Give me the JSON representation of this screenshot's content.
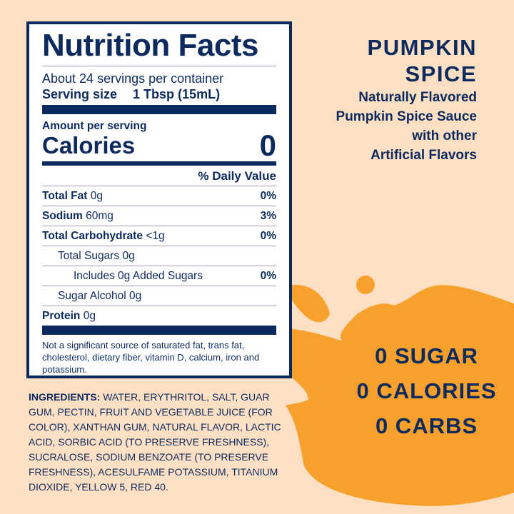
{
  "colors": {
    "background": "#fde0c3",
    "splash": "#f7a02c",
    "navy": "#0d2a5e"
  },
  "nutrition": {
    "title": "Nutrition Facts",
    "servings": "About 24 servings per container",
    "serving_size_label": "Serving size",
    "serving_size_value": "1 Tbsp (15mL)",
    "amount_per_serving": "Amount per serving",
    "calories_label": "Calories",
    "calories_value": "0",
    "daily_value_header": "% Daily Value",
    "rows": [
      {
        "name": "Total Fat",
        "amount": "0g",
        "dv": "0%"
      },
      {
        "name": "Sodium",
        "amount": "60mg",
        "dv": "3%"
      },
      {
        "name": "Total Carbohydrate",
        "amount": "<1g",
        "dv": "0%"
      },
      {
        "name": "Total Sugars 0g",
        "amount": "",
        "dv": ""
      },
      {
        "name": "Includes 0g Added Sugars",
        "amount": "",
        "dv": "0%"
      },
      {
        "name": "Sugar Alcohol 0g",
        "amount": "",
        "dv": ""
      },
      {
        "name": "Protein",
        "amount": "0g",
        "dv": ""
      }
    ],
    "footnote": "Not a significant source of saturated fat, trans fat, cholesterol, dietary fiber, vitamin D, calcium, iron and potassium."
  },
  "ingredients": {
    "label": "INGREDIENTS:",
    "text": " WATER, ERYTHRITOL, SALT, GUAR GUM, PECTIN, FRUIT AND VEGETABLE JUICE (FOR COLOR), XANTHAN GUM, NATURAL FLAVOR, LACTIC ACID, SORBIC ACID (TO PRESERVE FRESHNESS), SUCRALOSE, SODIUM BENZOATE (TO PRESERVE FRESHNESS), ACESULFAME POTASSIUM, TITANIUM DIOXIDE, YELLOW 5, RED 40."
  },
  "product": {
    "line1": "PUMPKIN",
    "line2": "SPICE",
    "desc": [
      "Naturally Flavored",
      "Pumpkin Spice Sauce",
      "with other",
      "Artificial Flavors"
    ]
  },
  "claims": [
    "0 SUGAR",
    "0 CALORIES",
    "0 CARBS"
  ]
}
